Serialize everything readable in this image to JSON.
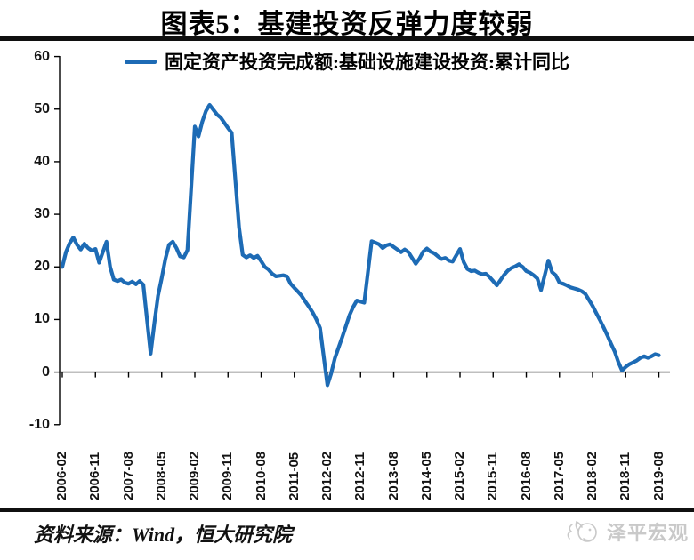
{
  "header": {
    "title": "图表5：基建投资反弹力度较弱"
  },
  "legend": {
    "label": "固定资产投资完成额:基础设施建设投资:累计同比"
  },
  "footer": {
    "source": "资料来源：Wind，恒大研究院"
  },
  "logo": {
    "text": "泽平宏观",
    "color": "#c9c9c9"
  },
  "colors": {
    "line": "#1d6bb5",
    "axis": "#000000"
  },
  "chart_data": {
    "type": "line",
    "title": "图表5：基建投资反弹力度较弱",
    "xlabel": "",
    "ylabel": "",
    "ylim": [
      -10,
      60
    ],
    "grid": false,
    "legend_position": "top",
    "yticks": [
      60,
      50,
      40,
      30,
      20,
      10,
      0,
      -10
    ],
    "xtick_labels": [
      "2006-02",
      "2006-11",
      "2007-08",
      "2008-05",
      "2009-02",
      "2009-11",
      "2010-08",
      "2011-05",
      "2012-02",
      "2012-11",
      "2013-08",
      "2014-05",
      "2015-02",
      "2015-11",
      "2016-08",
      "2017-05",
      "2018-02",
      "2018-11",
      "2019-08"
    ],
    "series": [
      {
        "name": "固定资产投资完成额:基础设施建设投资:累计同比",
        "color": "#1d6bb5",
        "points": [
          [
            "2006-02",
            20.0
          ],
          [
            "2006-03",
            22.8
          ],
          [
            "2006-04",
            24.5
          ],
          [
            "2006-05",
            25.6
          ],
          [
            "2006-06",
            24.2
          ],
          [
            "2006-07",
            23.3
          ],
          [
            "2006-08",
            24.4
          ],
          [
            "2006-09",
            23.6
          ],
          [
            "2006-10",
            23.1
          ],
          [
            "2006-11",
            23.4
          ],
          [
            "2006-12",
            20.8
          ],
          [
            "2007-02",
            24.8
          ],
          [
            "2007-03",
            20.0
          ],
          [
            "2007-04",
            17.6
          ],
          [
            "2007-05",
            17.3
          ],
          [
            "2007-06",
            17.6
          ],
          [
            "2007-07",
            17.0
          ],
          [
            "2007-08",
            16.8
          ],
          [
            "2007-09",
            17.2
          ],
          [
            "2007-10",
            16.7
          ],
          [
            "2007-11",
            17.3
          ],
          [
            "2007-12",
            16.6
          ],
          [
            "2008-02",
            3.5
          ],
          [
            "2008-03",
            9.3
          ],
          [
            "2008-04",
            14.5
          ],
          [
            "2008-05",
            17.9
          ],
          [
            "2008-06",
            21.5
          ],
          [
            "2008-07",
            24.2
          ],
          [
            "2008-08",
            24.8
          ],
          [
            "2008-09",
            23.6
          ],
          [
            "2008-10",
            22.0
          ],
          [
            "2008-11",
            21.8
          ],
          [
            "2008-12",
            23.2
          ],
          [
            "2009-02",
            46.7
          ],
          [
            "2009-03",
            44.8
          ],
          [
            "2009-04",
            47.6
          ],
          [
            "2009-05",
            49.6
          ],
          [
            "2009-06",
            50.8
          ],
          [
            "2009-07",
            49.9
          ],
          [
            "2009-08",
            49.0
          ],
          [
            "2009-09",
            48.4
          ],
          [
            "2009-10",
            47.4
          ],
          [
            "2009-11",
            46.4
          ],
          [
            "2009-12",
            45.5
          ],
          [
            "2010-02",
            27.5
          ],
          [
            "2010-03",
            22.3
          ],
          [
            "2010-04",
            21.8
          ],
          [
            "2010-05",
            22.2
          ],
          [
            "2010-06",
            21.7
          ],
          [
            "2010-07",
            22.1
          ],
          [
            "2010-08",
            21.1
          ],
          [
            "2010-09",
            20.0
          ],
          [
            "2010-10",
            19.5
          ],
          [
            "2010-11",
            18.7
          ],
          [
            "2010-12",
            18.2
          ],
          [
            "2011-02",
            18.4
          ],
          [
            "2011-03",
            18.2
          ],
          [
            "2011-04",
            16.8
          ],
          [
            "2011-05",
            16.0
          ],
          [
            "2011-06",
            15.3
          ],
          [
            "2011-07",
            14.5
          ],
          [
            "2011-08",
            13.4
          ],
          [
            "2011-09",
            12.4
          ],
          [
            "2011-10",
            11.3
          ],
          [
            "2011-11",
            10.0
          ],
          [
            "2011-12",
            8.4
          ],
          [
            "2012-02",
            -2.5
          ],
          [
            "2012-03",
            -0.3
          ],
          [
            "2012-04",
            2.6
          ],
          [
            "2012-05",
            4.6
          ],
          [
            "2012-06",
            6.6
          ],
          [
            "2012-07",
            8.7
          ],
          [
            "2012-08",
            10.8
          ],
          [
            "2012-09",
            12.4
          ],
          [
            "2012-10",
            13.6
          ],
          [
            "2012-11",
            13.4
          ],
          [
            "2012-12",
            13.2
          ],
          [
            "2013-02",
            24.9
          ],
          [
            "2013-03",
            24.6
          ],
          [
            "2013-04",
            24.3
          ],
          [
            "2013-05",
            23.6
          ],
          [
            "2013-06",
            24.1
          ],
          [
            "2013-07",
            24.3
          ],
          [
            "2013-08",
            23.8
          ],
          [
            "2013-09",
            23.3
          ],
          [
            "2013-10",
            22.8
          ],
          [
            "2013-11",
            23.3
          ],
          [
            "2013-12",
            22.8
          ],
          [
            "2014-02",
            20.6
          ],
          [
            "2014-03",
            21.6
          ],
          [
            "2014-04",
            22.9
          ],
          [
            "2014-05",
            23.5
          ],
          [
            "2014-06",
            22.9
          ],
          [
            "2014-07",
            22.6
          ],
          [
            "2014-08",
            22.0
          ],
          [
            "2014-09",
            21.5
          ],
          [
            "2014-10",
            21.7
          ],
          [
            "2014-11",
            21.2
          ],
          [
            "2014-12",
            21.0
          ],
          [
            "2015-02",
            23.4
          ],
          [
            "2015-03",
            20.9
          ],
          [
            "2015-04",
            19.6
          ],
          [
            "2015-05",
            19.2
          ],
          [
            "2015-06",
            19.3
          ],
          [
            "2015-07",
            18.9
          ],
          [
            "2015-08",
            18.6
          ],
          [
            "2015-09",
            18.7
          ],
          [
            "2015-10",
            18.1
          ],
          [
            "2015-11",
            17.3
          ],
          [
            "2015-12",
            16.5
          ],
          [
            "2016-02",
            18.5
          ],
          [
            "2016-03",
            19.3
          ],
          [
            "2016-04",
            19.8
          ],
          [
            "2016-05",
            20.1
          ],
          [
            "2016-06",
            20.5
          ],
          [
            "2016-07",
            20.0
          ],
          [
            "2016-08",
            19.2
          ],
          [
            "2016-09",
            18.9
          ],
          [
            "2016-10",
            18.4
          ],
          [
            "2016-11",
            17.8
          ],
          [
            "2016-12",
            15.6
          ],
          [
            "2017-02",
            21.2
          ],
          [
            "2017-03",
            19.0
          ],
          [
            "2017-04",
            18.4
          ],
          [
            "2017-05",
            17.0
          ],
          [
            "2017-06",
            16.8
          ],
          [
            "2017-07",
            16.5
          ],
          [
            "2017-08",
            16.1
          ],
          [
            "2017-09",
            15.9
          ],
          [
            "2017-10",
            15.7
          ],
          [
            "2017-11",
            15.4
          ],
          [
            "2017-12",
            14.9
          ],
          [
            "2018-02",
            12.6
          ],
          [
            "2018-03",
            11.2
          ],
          [
            "2018-04",
            9.9
          ],
          [
            "2018-05",
            8.5
          ],
          [
            "2018-06",
            7.0
          ],
          [
            "2018-07",
            5.4
          ],
          [
            "2018-08",
            3.9
          ],
          [
            "2018-09",
            1.9
          ],
          [
            "2018-10",
            0.3
          ],
          [
            "2018-11",
            1.0
          ],
          [
            "2018-12",
            1.5
          ],
          [
            "2019-02",
            2.2
          ],
          [
            "2019-03",
            2.7
          ],
          [
            "2019-04",
            3.0
          ],
          [
            "2019-05",
            2.7
          ],
          [
            "2019-06",
            3.0
          ],
          [
            "2019-07",
            3.4
          ],
          [
            "2019-08",
            3.2
          ]
        ]
      }
    ]
  }
}
